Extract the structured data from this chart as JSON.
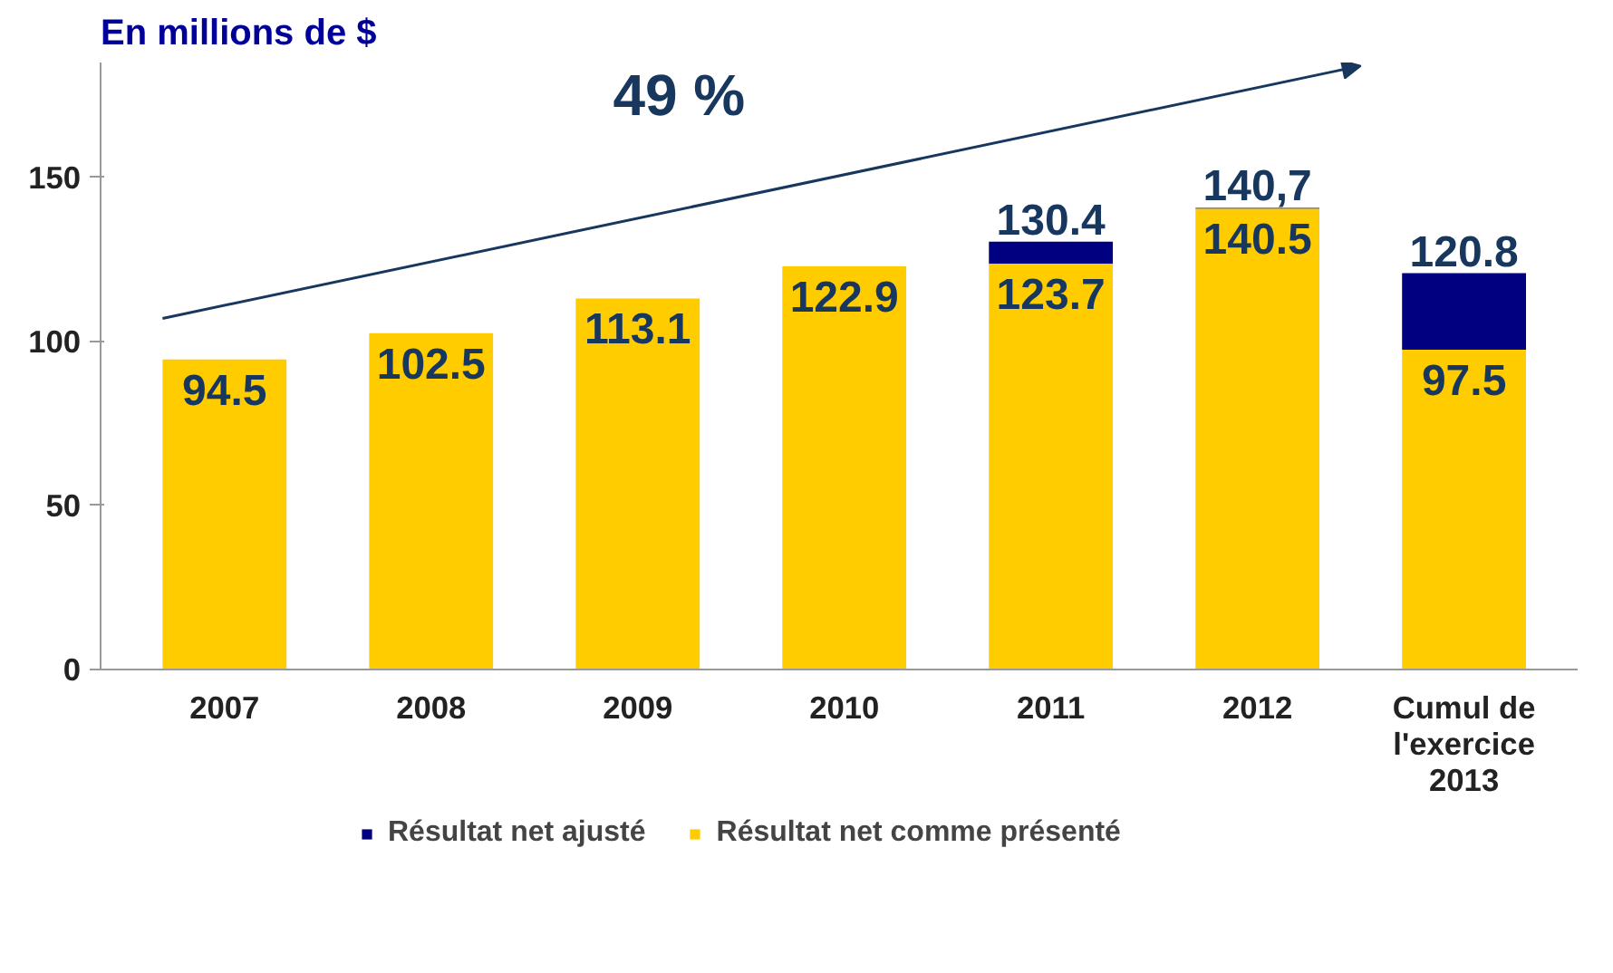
{
  "chart_data": {
    "type": "bar",
    "title": "En millions de $",
    "stacked": true,
    "categories": [
      "2007",
      "2008",
      "2009",
      "2010",
      "2011",
      "2012",
      "Cumul de\nl'exercice\n2013"
    ],
    "series": [
      {
        "name": "Résultat net comme présenté",
        "color": "#ffcc00",
        "values": [
          94.5,
          102.5,
          113.1,
          122.9,
          123.7,
          140.5,
          97.5
        ],
        "value_labels": [
          "94.5",
          "102.5",
          "113.1",
          "122.9",
          "123.7",
          "140.5",
          "97.5"
        ]
      },
      {
        "name": "Résultat net ajusté",
        "color": "#000080",
        "values": [
          null,
          null,
          null,
          null,
          6.7,
          0.2,
          23.3
        ]
      }
    ],
    "totals": [
      null,
      null,
      null,
      null,
      "130.4",
      "140,7",
      "120.8"
    ],
    "ylim": [
      0,
      185
    ],
    "yticks": [
      0,
      50,
      100,
      150
    ],
    "grid": false,
    "legend": "bottom",
    "annotations": [
      "49 %"
    ]
  }
}
